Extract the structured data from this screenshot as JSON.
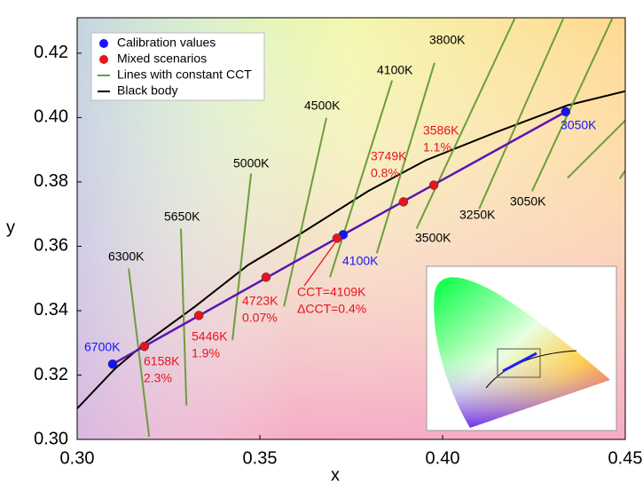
{
  "chart_data": {
    "type": "scatter",
    "xlabel": "x",
    "ylabel": "y",
    "xlim": [
      0.3,
      0.45
    ],
    "ylim": [
      0.3,
      0.431
    ],
    "xticks": [
      {
        "value": 0.3,
        "label": "0.30"
      },
      0.35,
      {
        "value": 0.4,
        "label": "0.40"
      },
      0.45
    ],
    "yticks": [
      {
        "value": 0.3,
        "label": "0.30"
      },
      0.32,
      0.34,
      0.36,
      0.38,
      {
        "value": 0.4,
        "label": "0.40"
      },
      0.42
    ],
    "legend": "upper left",
    "series": [
      {
        "name": "Calibration values",
        "color": "#1414ff",
        "line_color": "#5a16b0",
        "marker": "dot",
        "x": [
          0.3097,
          0.3728,
          0.4337
        ],
        "values": [
          0.3234,
          0.3636,
          0.4018
        ],
        "labels": [
          "6700K",
          "4100K",
          "3050K"
        ]
      },
      {
        "name": "Mixed scenarios",
        "color": "#e8141a",
        "marker": "dot",
        "x": [
          0.3184,
          0.3333,
          0.3517,
          0.3711,
          0.3893,
          0.3976
        ],
        "values": [
          0.3289,
          0.3385,
          0.3504,
          0.3625,
          0.3738,
          0.379
        ],
        "labels": [
          [
            "6158K",
            "2.3%"
          ],
          [
            "5446K",
            "1.9%"
          ],
          [
            "4723K",
            "0.07%"
          ],
          [
            "CCT=4109K",
            "ΔCCT=0.4%"
          ],
          [
            "3749K",
            "0.8%"
          ],
          [
            "3586K",
            "1.1%"
          ]
        ]
      },
      {
        "name": "Lines with constant CCT",
        "color": "#6b9e3a",
        "marker": "segments",
        "segments": [
          {
            "label": "6300K",
            "x": [
              0.3141,
              0.3197
            ],
            "values": [
              0.3531,
              0.3008
            ]
          },
          {
            "label": "5650K",
            "x": [
              0.3284,
              0.3299
            ],
            "values": [
              0.3655,
              0.3105
            ]
          },
          {
            "label": "5000K",
            "x": [
              0.3476,
              0.3425
            ],
            "values": [
              0.3826,
              0.3308
            ]
          },
          {
            "label": "4500K",
            "x": [
              0.3682,
              0.3566
            ],
            "values": [
              0.3999,
              0.3413
            ]
          },
          {
            "label": "4100K",
            "x": [
              0.3862,
              0.3692
            ],
            "values": [
              0.4115,
              0.3504
            ]
          },
          {
            "label": "3800K",
            "x": [
              0.3978,
              0.382
            ],
            "values": [
              0.417,
              0.3578
            ]
          },
          {
            "label": "3500K",
            "x": [
              0.4197,
              0.3929
            ],
            "values": [
              0.4307,
              0.3655
            ]
          },
          {
            "label": "3250K",
            "x": [
              0.433,
              0.41
            ],
            "values": [
              0.4307,
              0.3716
            ]
          },
          {
            "label": "3050K",
            "x": [
              0.4464,
              0.4245
            ],
            "values": [
              0.4307,
              0.3771
            ]
          },
          {
            "x": [
              0.45,
              0.4342
            ],
            "values": [
              0.3991,
              0.3812
            ]
          },
          {
            "x": [
              0.45,
              0.4485
            ],
            "values": [
              0.3835,
              0.381
            ]
          }
        ]
      },
      {
        "name": "Black body",
        "color": "#000000",
        "marker": "line",
        "x": [
          0.3,
          0.3104,
          0.319,
          0.3323,
          0.3468,
          0.3614,
          0.3796,
          0.3954,
          0.4148,
          0.4342,
          0.45
        ],
        "values": [
          0.3096,
          0.322,
          0.3303,
          0.3413,
          0.3542,
          0.3641,
          0.3771,
          0.3867,
          0.3955,
          0.4038,
          0.4082
        ]
      }
    ]
  }
}
